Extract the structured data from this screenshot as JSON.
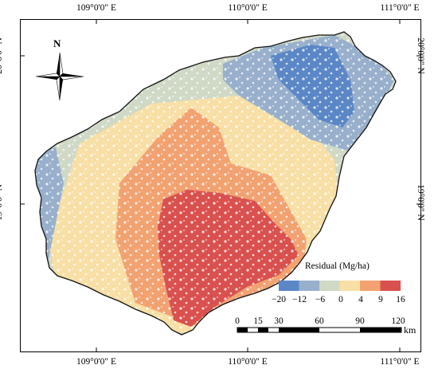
{
  "axes": {
    "longitude_labels": [
      "109°0'0\" E",
      "110°0'0\" E",
      "111°0'0\" E"
    ],
    "latitude_labels": [
      "20°0'0\" N",
      "19°0'0\" N"
    ]
  },
  "north_arrow": {
    "label": "N"
  },
  "legend": {
    "title": "Residual (Mg/ha)",
    "breaks": [
      "−20",
      "−12",
      "−6",
      "0",
      "4",
      "9",
      "16"
    ],
    "colors": [
      "#5b87c7",
      "#98b0cc",
      "#cfd9c6",
      "#f7dfa5",
      "#f2a271",
      "#d9514e"
    ]
  },
  "scale_bar": {
    "labels": [
      "0",
      "15",
      "30",
      "60",
      "90",
      "120"
    ],
    "unit": "km"
  },
  "colors": {
    "land_background": "#ffffff",
    "outline": "#111111"
  }
}
